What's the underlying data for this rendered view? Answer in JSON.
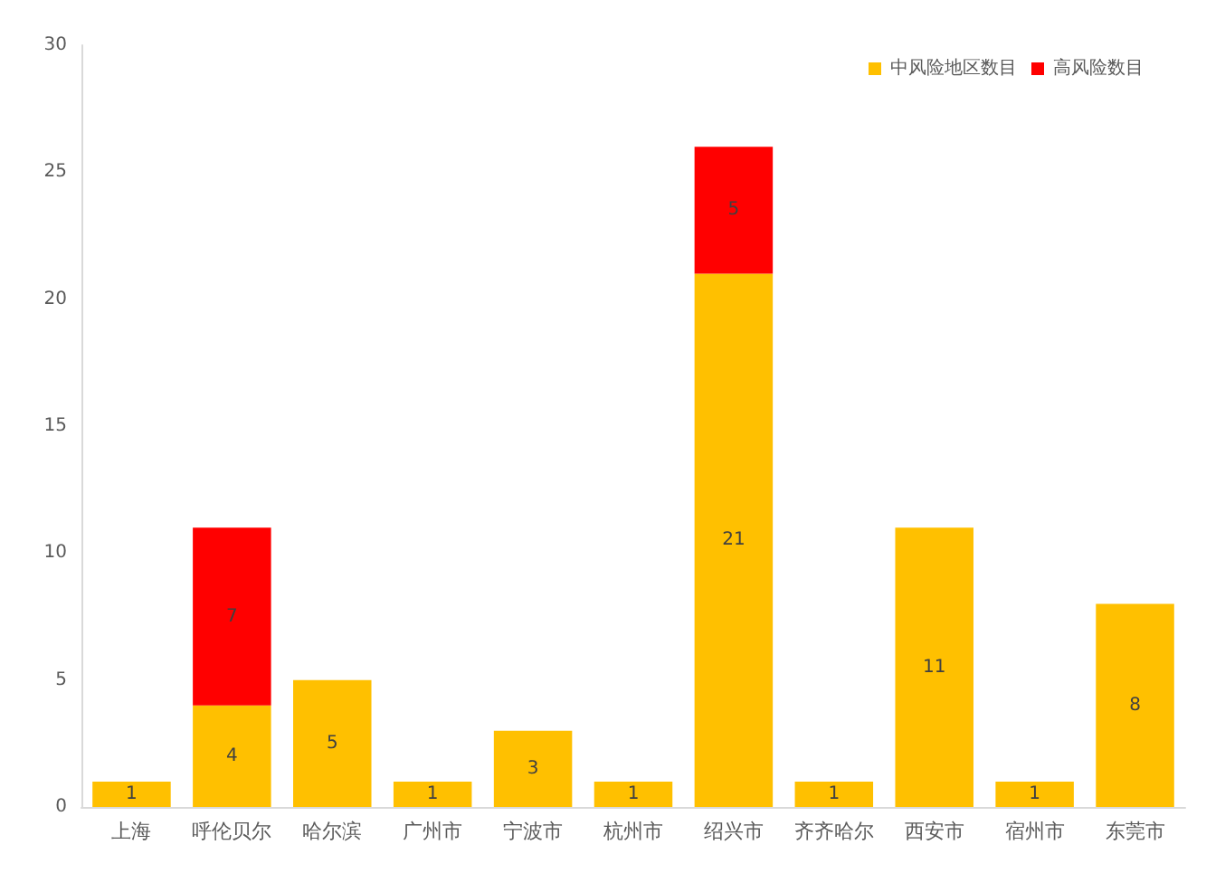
{
  "chart_data": {
    "type": "bar",
    "stacked": true,
    "categories": [
      "上海",
      "呼伦贝尔",
      "哈尔滨",
      "广州市",
      "宁波市",
      "杭州市",
      "绍兴市",
      "齐齐哈尔",
      "西安市",
      "宿州市",
      "东莞市"
    ],
    "series": [
      {
        "name": "中风险地区数目",
        "color": "#ffc000",
        "values": [
          1,
          4,
          5,
          1,
          3,
          1,
          21,
          1,
          11,
          1,
          8
        ]
      },
      {
        "name": "高风险数目",
        "color": "#ff0000",
        "values": [
          null,
          7,
          null,
          null,
          null,
          null,
          5,
          null,
          null,
          null,
          null
        ]
      }
    ],
    "ylim": [
      0,
      30
    ],
    "yticks": [
      0,
      5,
      10,
      15,
      20,
      25,
      30
    ],
    "grid": false,
    "legend": "top right",
    "data_labels": true
  }
}
